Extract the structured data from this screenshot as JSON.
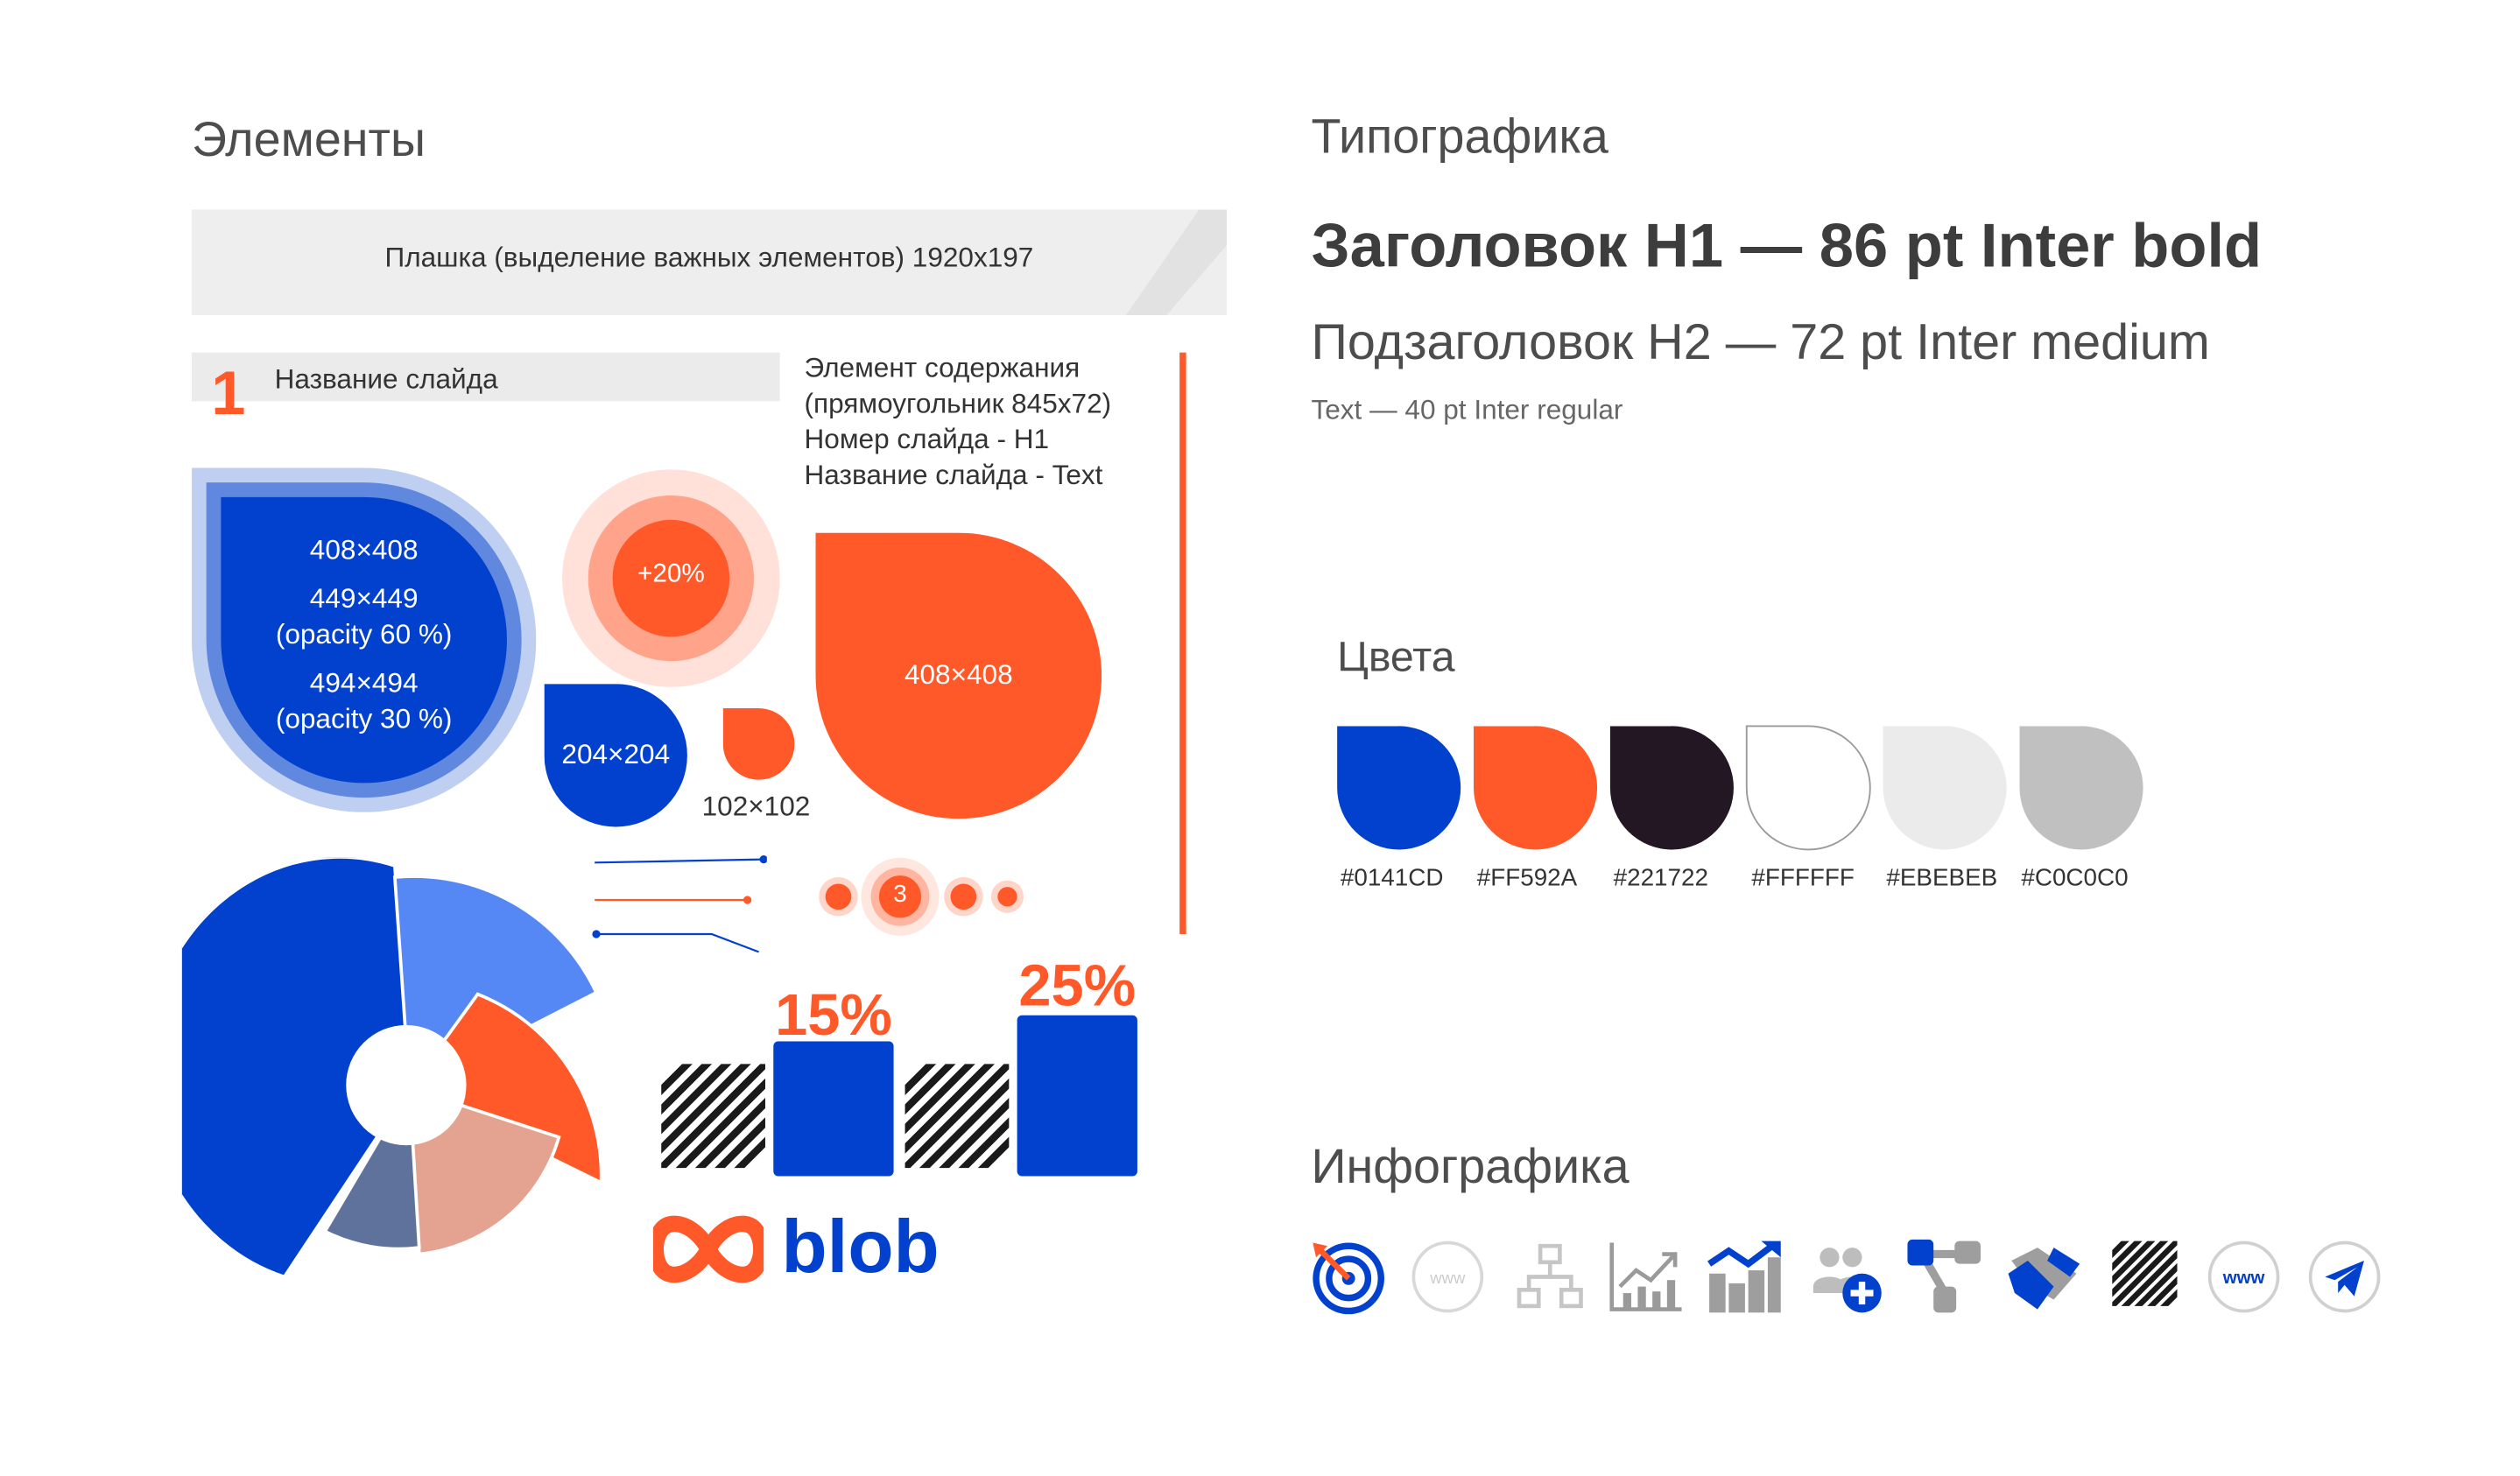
{
  "sections": {
    "elements_title": "Элементы",
    "typography_title": "Типографика",
    "colors_title": "Цвета",
    "infographics_title": "Инфографика"
  },
  "elements": {
    "banner_text": "Плашка (выделение важных элементов) 1920x197",
    "slide_number": "1",
    "slide_title": "Название слайда",
    "contents_desc": [
      "Элемент содержания",
      "(прямоугольник 845x72)",
      "Номер слайда - H1",
      "Название слайда - Text"
    ],
    "blob_big_labels": [
      "408×408",
      "449×449",
      "(opacity 60 %)",
      "494×494",
      "(opacity 30 %)"
    ],
    "circle_badge": "+20%",
    "blob_204": "204×204",
    "blob_102": "102×102",
    "blob_orange": "408×408",
    "bullet_number": "3",
    "bar_left_value": "15%",
    "bar_right_value": "25%",
    "logo_text": "blob"
  },
  "typography": {
    "h1": "Заголовок H1 — 86 pt Inter bold",
    "h2_part1": "Подзаголовок H2 — 72 pt",
    "h2_part2": "Inter medium",
    "text": "Text — 40 pt Inter regular"
  },
  "colors": {
    "swatches": [
      {
        "hex": "#0141CD",
        "label": "#0141CD"
      },
      {
        "hex": "#FF592A",
        "label": "#FF592A"
      },
      {
        "hex": "#221722",
        "label": "#221722"
      },
      {
        "hex": "#FFFFFF",
        "label": "#FFFFFF"
      },
      {
        "hex": "#EBEBEB",
        "label": "#EBEBEB"
      },
      {
        "hex": "#C0C0C0",
        "label": "#C0C0C0"
      }
    ]
  },
  "infographics": {
    "icons": [
      "target-icon",
      "www-outline-icon",
      "hierarchy-icon",
      "growth-chart-outline-icon",
      "growth-chart-filled-icon",
      "add-users-icon",
      "connection-icon",
      "handshake-icon",
      "hatch-pattern-icon",
      "www-circle-icon",
      "telegram-icon"
    ],
    "www_label": "www"
  }
}
